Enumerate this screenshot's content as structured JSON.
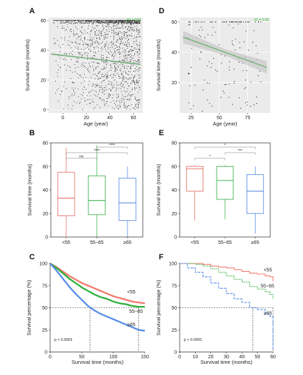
{
  "figure": {
    "panels": [
      "A",
      "B",
      "C",
      "D",
      "E",
      "F"
    ]
  },
  "chart_data": [
    {
      "panel": "A",
      "type": "scatter",
      "xlabel": "Age (year)",
      "ylabel": "Survival time (months)",
      "xticks": [
        "0",
        "20",
        "40",
        "60"
      ],
      "yticks": [
        "0",
        "20",
        "40",
        "60"
      ],
      "xlim": [
        -12,
        68
      ],
      "ylim": [
        -2,
        62
      ],
      "trend_line": {
        "x": [
          -10,
          66
        ],
        "y": [
          37.5,
          30.5
        ]
      },
      "corner_label": "R² = 0.01",
      "note": "dense scatter of patients; age × survival time"
    },
    {
      "panel": "D",
      "type": "scatter",
      "xlabel": "Age (year)",
      "ylabel": "Survival time (months)",
      "xticks": [
        "25",
        "50",
        "75"
      ],
      "yticks": [
        "20",
        "40",
        "60"
      ],
      "xlim": [
        15,
        95
      ],
      "ylim": [
        0,
        63
      ],
      "trend_line": {
        "x": [
          18,
          92
        ],
        "y": [
          50,
          30
        ]
      },
      "corner_label": "R² = 0.05"
    },
    {
      "panel": "B",
      "type": "box",
      "ylabel": "Survival time (months)",
      "categories": [
        "<55",
        "55~65",
        "≥65"
      ],
      "colors": [
        "#e8736a",
        "#3fb24f",
        "#5b8fe0"
      ],
      "ylim": [
        0,
        80
      ],
      "yticks": [
        "0",
        "20",
        "40",
        "60",
        "80"
      ],
      "boxes": [
        {
          "min": 0,
          "q1": 18,
          "median": 33,
          "q3": 55,
          "max": 76
        },
        {
          "min": 0,
          "q1": 19,
          "median": 31,
          "q3": 52,
          "max": 78
        },
        {
          "min": 0,
          "q1": 14,
          "median": 29,
          "q3": 50,
          "max": 60
        }
      ],
      "significance": [
        {
          "from": 0,
          "to": 1,
          "label": "ns"
        },
        {
          "from": 0,
          "to": 2,
          "label": "****"
        },
        {
          "from": 1,
          "to": 2,
          "label": "****"
        }
      ]
    },
    {
      "panel": "E",
      "type": "box",
      "ylabel": "Survival time (months)",
      "categories": [
        "<55",
        "55~65",
        "≥65"
      ],
      "colors": [
        "#e8736a",
        "#3fb24f",
        "#5b8fe0"
      ],
      "ylim": [
        0,
        80
      ],
      "yticks": [
        "0",
        "20",
        "40",
        "60",
        "80"
      ],
      "boxes": [
        {
          "min": 14,
          "q1": 39,
          "median": 58,
          "q3": 60,
          "max": 61
        },
        {
          "min": 15,
          "q1": 32,
          "median": 48,
          "q3": 60,
          "max": 61
        },
        {
          "min": 3,
          "q1": 20,
          "median": 39,
          "q3": 53,
          "max": 60
        }
      ],
      "significance": [
        {
          "from": 0,
          "to": 1,
          "label": "*"
        },
        {
          "from": 1,
          "to": 2,
          "label": "***"
        },
        {
          "from": 0,
          "to": 2,
          "label": "*"
        }
      ]
    },
    {
      "panel": "C",
      "type": "line",
      "xlabel": "Survival time (months)",
      "ylabel": "Survival percentage (%)",
      "xlim": [
        0,
        150
      ],
      "ylim": [
        0,
        100
      ],
      "xticks": [
        "0",
        "50",
        "100",
        "150"
      ],
      "yticks": [
        "0",
        "25",
        "50",
        "75",
        "100"
      ],
      "annotation": "p < 0.0001",
      "median_line_y": 50,
      "median_x": [
        63,
        140
      ],
      "series": [
        {
          "name": "<55",
          "color": "#f07a6e",
          "x": [
            0,
            10,
            20,
            30,
            40,
            50,
            60,
            70,
            80,
            90,
            100,
            110,
            120,
            130,
            140,
            150
          ],
          "y": [
            100,
            96,
            91,
            86,
            82,
            78,
            75,
            72,
            69,
            66,
            63,
            61,
            59,
            57,
            56,
            55
          ]
        },
        {
          "name": "55~65",
          "color": "#31b13f",
          "x": [
            0,
            10,
            20,
            30,
            40,
            50,
            60,
            70,
            80,
            90,
            100,
            110,
            120,
            130,
            140,
            150
          ],
          "y": [
            100,
            95,
            89,
            83,
            78,
            73,
            69,
            65,
            62,
            60,
            57,
            55,
            54,
            52,
            51,
            51
          ]
        },
        {
          "name": "≥65",
          "color": "#5b8fe8",
          "x": [
            0,
            10,
            20,
            30,
            40,
            50,
            60,
            70,
            80,
            90,
            100,
            110,
            120,
            130,
            140,
            150
          ],
          "y": [
            100,
            92,
            83,
            74,
            66,
            59,
            52,
            47,
            43,
            40,
            37,
            34,
            31,
            28,
            25,
            24
          ]
        }
      ],
      "labels": [
        {
          "series": 0,
          "text": "<55",
          "x": 122,
          "y": 66
        },
        {
          "series": 1,
          "text": "55~65",
          "x": 125,
          "y": 44
        },
        {
          "series": 2,
          "text": "≥65",
          "x": 122,
          "y": 29
        }
      ]
    },
    {
      "panel": "F",
      "type": "line",
      "xlabel": "Survival time (months)",
      "ylabel": "Survival percentage (%)",
      "xlim": [
        0,
        60
      ],
      "ylim": [
        0,
        100
      ],
      "xticks": [
        "0",
        "10",
        "20",
        "30",
        "40",
        "50",
        "60"
      ],
      "yticks": [
        "0",
        "25",
        "50",
        "75",
        "100"
      ],
      "annotation": "p < 0.0001",
      "median_line_y": 50,
      "median_x": [
        47,
        60
      ],
      "series": [
        {
          "name": "<55",
          "color": "#f07a6e",
          "x": [
            0,
            10,
            15,
            20,
            25,
            30,
            35,
            40,
            45,
            50,
            55,
            58,
            60
          ],
          "y": [
            100,
            100,
            99,
            97,
            96,
            95,
            93,
            91,
            89,
            88,
            86,
            85,
            80
          ]
        },
        {
          "name": "55~65",
          "color": "#31b13f",
          "x": [
            0,
            10,
            15,
            20,
            25,
            30,
            35,
            40,
            45,
            50,
            55,
            58,
            60
          ],
          "y": [
            100,
            99,
            97,
            94,
            90,
            86,
            82,
            79,
            74,
            71,
            68,
            65,
            60
          ]
        },
        {
          "name": "≥65",
          "color": "#5b8fe8",
          "x": [
            0,
            5,
            10,
            15,
            20,
            25,
            30,
            35,
            40,
            45,
            50,
            55,
            58,
            60
          ],
          "y": [
            100,
            95,
            90,
            85,
            78,
            72,
            66,
            60,
            56,
            50,
            48,
            43,
            40,
            2
          ]
        }
      ],
      "labels": [
        {
          "series": 0,
          "text": "<55",
          "x": 54,
          "y": 91
        },
        {
          "series": 1,
          "text": "55~65",
          "x": 52,
          "y": 73
        },
        {
          "series": 2,
          "text": "≥65",
          "x": 54,
          "y": 42
        }
      ]
    }
  ]
}
